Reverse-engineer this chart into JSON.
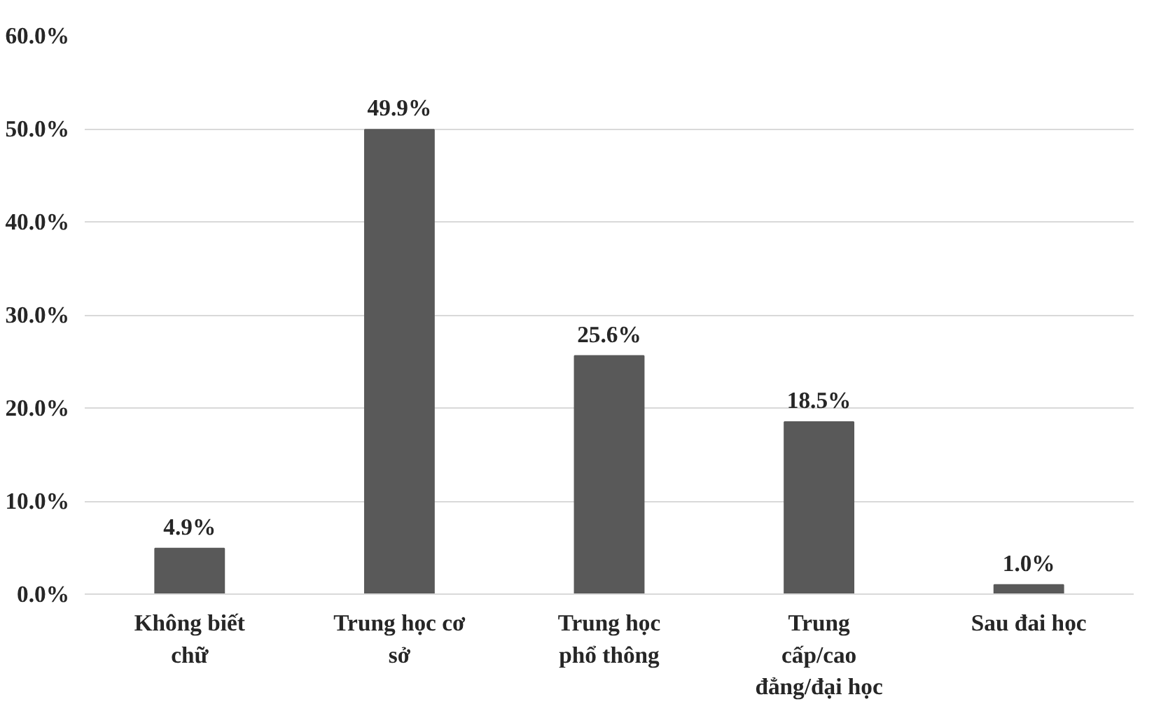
{
  "chart_data": {
    "type": "bar",
    "categories": [
      "Không biết chữ",
      "Trung học cơ sở",
      "Trung học phổ thông",
      "Trung cấp/cao đẳng/đại học",
      "Sau đai học"
    ],
    "values": [
      4.9,
      49.9,
      25.6,
      18.5,
      1.0
    ],
    "value_labels": [
      "4.9%",
      "49.9%",
      "25.6%",
      "18.5%",
      "1.0%"
    ],
    "color": "#595959",
    "ylim": [
      0,
      60
    ],
    "yticks": [
      {
        "value": 0,
        "label": "0.0%"
      },
      {
        "value": 10,
        "label": "10.0%"
      },
      {
        "value": 20,
        "label": "20.0%"
      },
      {
        "value": 30,
        "label": "30.0%"
      },
      {
        "value": 40,
        "label": "40.0%"
      },
      {
        "value": 50,
        "label": "50.0%"
      },
      {
        "value": 60,
        "label": "60.0%"
      }
    ],
    "grid": "y"
  }
}
